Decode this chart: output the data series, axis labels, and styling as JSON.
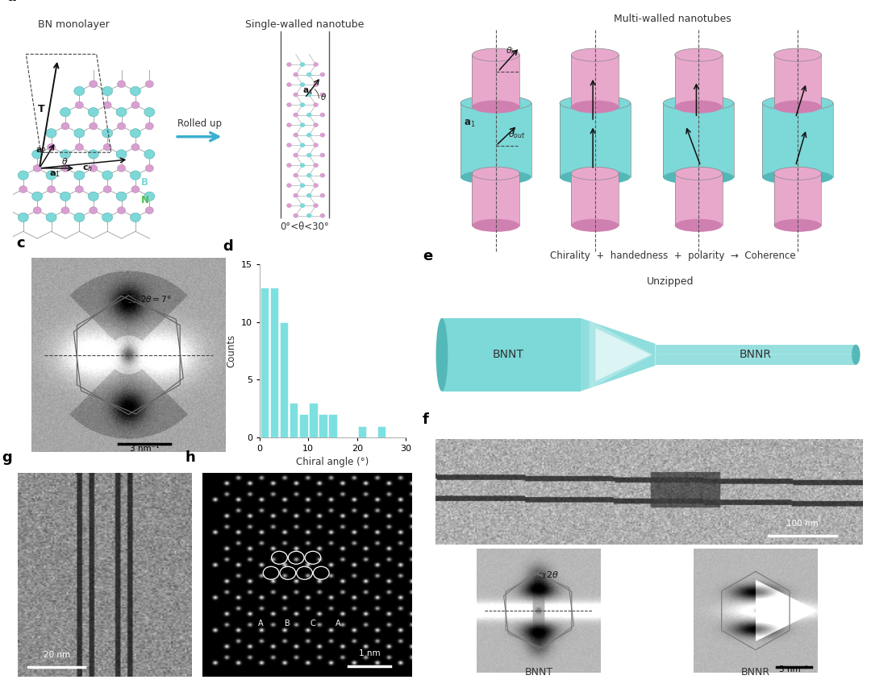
{
  "background_color": "#ffffff",
  "bar_data": {
    "counts": [
      13,
      13,
      10,
      3,
      2,
      3,
      2,
      2,
      0,
      0,
      1,
      0,
      1
    ],
    "bar_color": "#7de0e0",
    "xlabel": "Chiral angle (°)",
    "ylabel": "Counts",
    "xlim": [
      0,
      30
    ],
    "ylim": [
      0,
      15
    ],
    "yticks": [
      0,
      5,
      10,
      15
    ],
    "xticks": [
      0,
      10,
      20,
      30
    ]
  },
  "panel_a_title": "BN monolayer",
  "panel_a_title2": "Single-walled nanotube",
  "panel_a_rolled": "Rolled up",
  "panel_a_angle": "0°<θ<30°",
  "panel_b_title": "Multi-walled nanotubes",
  "panel_b_bottom": "Chirality  +  handedness  +  polarity  →  Coherence",
  "panel_c_scalebar": "3 nm⁻¹",
  "panel_e_title": "Unzipped",
  "panel_e_left": "BNNT",
  "panel_e_right": "BNNR",
  "panel_f_scalebar": "100 nm",
  "panel_g_scalebar": "20 nm",
  "panel_h_scalebar": "1 nm",
  "panel_f_left_label": "BNNT",
  "panel_f_right_label": "BNNR",
  "panel_f_scalebar2": "3 nm⁻¹",
  "cyan_color": "#7dd8d8",
  "cyan_light": "#a8e8e8",
  "cyan_dark": "#55b8b8",
  "pink_color": "#e8a8cc",
  "pink_light": "#f0c0d8",
  "pink_dark": "#d080b0"
}
